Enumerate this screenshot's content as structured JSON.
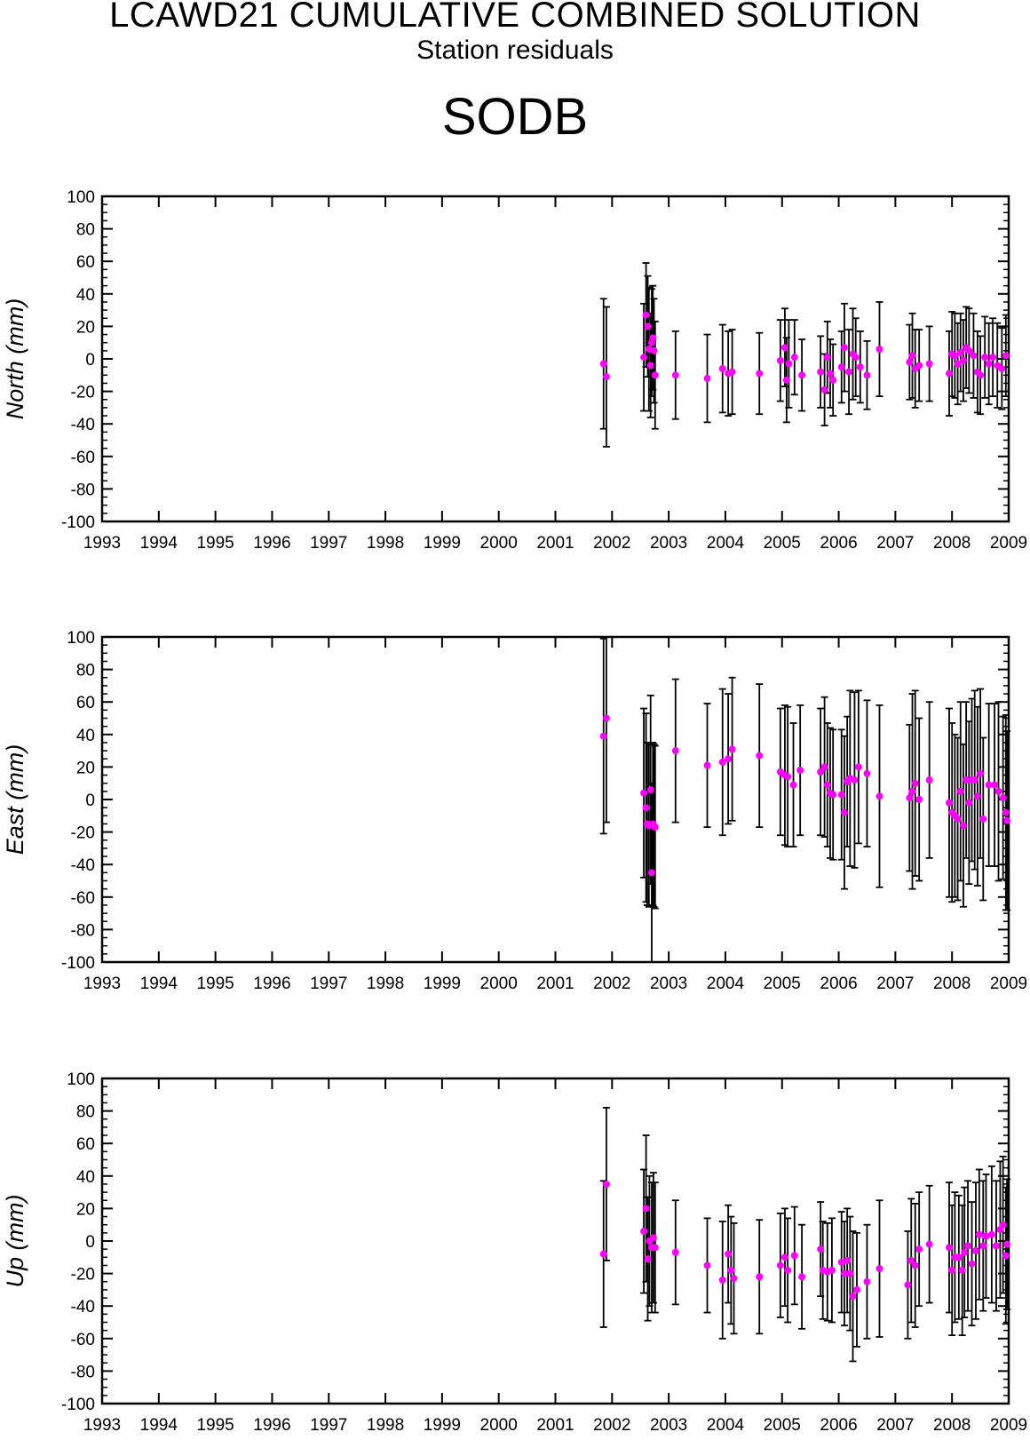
{
  "header": {
    "title": "LCAWD21 CUMULATIVE COMBINED SOLUTION",
    "subtitle": "Station residuals",
    "station": "SODB"
  },
  "colors": {
    "marker": "#ff00ff",
    "errorbar": "#000000",
    "axis": "#000000"
  },
  "chart_data": [
    {
      "type": "scatter",
      "ylabel": "North (mm)",
      "xlim": [
        1993,
        2009
      ],
      "ylim": [
        -100,
        100
      ],
      "xticks": [
        "1993",
        "1994",
        "1995",
        "1996",
        "1997",
        "1998",
        "1999",
        "2000",
        "2001",
        "2002",
        "2003",
        "2004",
        "2005",
        "2006",
        "2007",
        "2008",
        "2009"
      ],
      "yticks": [
        "100",
        "80",
        "60",
        "40",
        "20",
        "0",
        "-20",
        "-40",
        "-60",
        "-80",
        "-100"
      ],
      "points": [
        [
          2001.85,
          -3,
          40
        ],
        [
          2001.9,
          -11,
          43
        ],
        [
          2002.56,
          1,
          33
        ],
        [
          2002.6,
          27,
          32
        ],
        [
          2002.63,
          20,
          31
        ],
        [
          2002.65,
          6,
          38
        ],
        [
          2002.68,
          -4,
          32
        ],
        [
          2002.7,
          10,
          33
        ],
        [
          2002.72,
          13,
          32
        ],
        [
          2002.74,
          5,
          32
        ],
        [
          2002.76,
          -10,
          33
        ],
        [
          2003.12,
          -10,
          27
        ],
        [
          2003.68,
          -12,
          27
        ],
        [
          2003.95,
          -6,
          27
        ],
        [
          2004.05,
          -9,
          26
        ],
        [
          2004.12,
          -8,
          26
        ],
        [
          2004.6,
          -9,
          25
        ],
        [
          2004.97,
          -1,
          25
        ],
        [
          2005.05,
          7,
          24
        ],
        [
          2005.08,
          -13,
          26
        ],
        [
          2005.12,
          -3,
          27
        ],
        [
          2005.22,
          1,
          23
        ],
        [
          2005.35,
          -10,
          22
        ],
        [
          2005.68,
          -8,
          22
        ],
        [
          2005.75,
          -19,
          22
        ],
        [
          2005.8,
          1,
          22
        ],
        [
          2005.85,
          -9,
          21
        ],
        [
          2005.9,
          -13,
          22
        ],
        [
          2006.05,
          -5,
          22
        ],
        [
          2006.1,
          7,
          27
        ],
        [
          2006.18,
          -8,
          26
        ],
        [
          2006.25,
          3,
          28
        ],
        [
          2006.3,
          1,
          24
        ],
        [
          2006.38,
          -5,
          22
        ],
        [
          2006.5,
          -10,
          21
        ],
        [
          2006.72,
          6,
          29
        ],
        [
          2007.25,
          -2,
          23
        ],
        [
          2007.3,
          2,
          26
        ],
        [
          2007.35,
          -6,
          24
        ],
        [
          2007.42,
          -4,
          22
        ],
        [
          2007.6,
          -3,
          23
        ],
        [
          2007.95,
          -9,
          26
        ],
        [
          2008.0,
          3,
          26
        ],
        [
          2008.05,
          2,
          26
        ],
        [
          2008.1,
          -3,
          25
        ],
        [
          2008.15,
          4,
          24
        ],
        [
          2008.2,
          -1,
          25
        ],
        [
          2008.25,
          7,
          25
        ],
        [
          2008.3,
          5,
          26
        ],
        [
          2008.38,
          2,
          26
        ],
        [
          2008.45,
          -8,
          25
        ],
        [
          2008.5,
          -10,
          24
        ],
        [
          2008.58,
          1,
          25
        ],
        [
          2008.65,
          -3,
          25
        ],
        [
          2008.72,
          1,
          24
        ],
        [
          2008.8,
          -4,
          26
        ],
        [
          2008.88,
          -6,
          25
        ],
        [
          2008.95,
          2,
          25
        ]
      ]
    },
    {
      "type": "scatter",
      "ylabel": "East (mm)",
      "xlim": [
        1993,
        2009
      ],
      "ylim": [
        -100,
        100
      ],
      "xticks": [
        "1993",
        "1994",
        "1995",
        "1996",
        "1997",
        "1998",
        "1999",
        "2000",
        "2001",
        "2002",
        "2003",
        "2004",
        "2005",
        "2006",
        "2007",
        "2008",
        "2009"
      ],
      "yticks": [
        "100",
        "80",
        "60",
        "40",
        "20",
        "0",
        "-20",
        "-40",
        "-60",
        "-80",
        "-100"
      ],
      "points": [
        [
          2001.85,
          39,
          60
        ],
        [
          2001.9,
          50,
          64
        ],
        [
          2002.56,
          4,
          52
        ],
        [
          2002.6,
          -5,
          58
        ],
        [
          2002.62,
          -15,
          50
        ],
        [
          2002.65,
          -16,
          50
        ],
        [
          2002.68,
          6,
          58
        ],
        [
          2002.7,
          -45,
          55
        ],
        [
          2002.72,
          -15,
          50
        ],
        [
          2002.74,
          -16,
          50
        ],
        [
          2002.76,
          -17,
          50
        ],
        [
          2003.12,
          30,
          44
        ],
        [
          2003.68,
          21,
          38
        ],
        [
          2003.95,
          23,
          45
        ],
        [
          2004.05,
          25,
          40
        ],
        [
          2004.12,
          31,
          44
        ],
        [
          2004.6,
          27,
          44
        ],
        [
          2004.97,
          17,
          39
        ],
        [
          2005.05,
          15,
          43
        ],
        [
          2005.1,
          14,
          43
        ],
        [
          2005.2,
          9,
          38
        ],
        [
          2005.32,
          18,
          40
        ],
        [
          2005.68,
          17,
          39
        ],
        [
          2005.75,
          20,
          43
        ],
        [
          2005.8,
          9,
          38
        ],
        [
          2005.85,
          4,
          40
        ],
        [
          2005.9,
          3,
          40
        ],
        [
          2006.05,
          3,
          40
        ],
        [
          2006.1,
          -8,
          47
        ],
        [
          2006.15,
          11,
          40
        ],
        [
          2006.2,
          13,
          54
        ],
        [
          2006.28,
          12,
          54
        ],
        [
          2006.35,
          20,
          47
        ],
        [
          2006.5,
          16,
          45
        ],
        [
          2006.72,
          2,
          56
        ],
        [
          2007.25,
          1,
          45
        ],
        [
          2007.3,
          5,
          60
        ],
        [
          2007.35,
          10,
          57
        ],
        [
          2007.42,
          0,
          50
        ],
        [
          2007.6,
          12,
          48
        ],
        [
          2007.95,
          -2,
          58
        ],
        [
          2008.0,
          -8,
          55
        ],
        [
          2008.05,
          -10,
          50
        ],
        [
          2008.1,
          -12,
          50
        ],
        [
          2008.15,
          5,
          55
        ],
        [
          2008.2,
          -16,
          50
        ],
        [
          2008.25,
          12,
          48
        ],
        [
          2008.3,
          -2,
          50
        ],
        [
          2008.35,
          12,
          50
        ],
        [
          2008.4,
          12,
          55
        ],
        [
          2008.45,
          2,
          55
        ],
        [
          2008.5,
          16,
          52
        ],
        [
          2008.55,
          -12,
          50
        ],
        [
          2008.65,
          9,
          50
        ],
        [
          2008.75,
          9,
          50
        ],
        [
          2008.82,
          5,
          55
        ],
        [
          2008.9,
          1,
          50
        ],
        [
          2008.95,
          -8,
          60
        ],
        [
          2008.97,
          -13,
          55
        ]
      ]
    },
    {
      "type": "scatter",
      "ylabel": "Up (mm)",
      "xlim": [
        1993,
        2009
      ],
      "ylim": [
        -100,
        100
      ],
      "xticks": [
        "1993",
        "1994",
        "1995",
        "1996",
        "1997",
        "1998",
        "1999",
        "2000",
        "2001",
        "2002",
        "2003",
        "2004",
        "2005",
        "2006",
        "2007",
        "2008",
        "2009"
      ],
      "yticks": [
        "100",
        "80",
        "60",
        "40",
        "20",
        "0",
        "-20",
        "-40",
        "-60",
        "-80",
        "-100"
      ],
      "points": [
        [
          2001.85,
          -8,
          45
        ],
        [
          2001.9,
          35,
          47
        ],
        [
          2002.56,
          6,
          38
        ],
        [
          2002.6,
          20,
          45
        ],
        [
          2002.63,
          -11,
          38
        ],
        [
          2002.66,
          0,
          40
        ],
        [
          2002.7,
          -4,
          40
        ],
        [
          2002.73,
          2,
          40
        ],
        [
          2002.76,
          -4,
          40
        ],
        [
          2003.12,
          -7,
          32
        ],
        [
          2003.68,
          -15,
          29
        ],
        [
          2003.95,
          -24,
          36
        ],
        [
          2004.05,
          -8,
          30
        ],
        [
          2004.1,
          -18,
          33
        ],
        [
          2004.15,
          -23,
          34
        ],
        [
          2004.6,
          -22,
          35
        ],
        [
          2004.97,
          -15,
          32
        ],
        [
          2005.05,
          -10,
          30
        ],
        [
          2005.1,
          -18,
          32
        ],
        [
          2005.22,
          -9,
          30
        ],
        [
          2005.35,
          -22,
          32
        ],
        [
          2005.68,
          -5,
          29
        ],
        [
          2005.72,
          -18,
          30
        ],
        [
          2005.8,
          -19,
          30
        ],
        [
          2005.88,
          -18,
          32
        ],
        [
          2006.05,
          -13,
          31
        ],
        [
          2006.1,
          -20,
          32
        ],
        [
          2006.15,
          -12,
          32
        ],
        [
          2006.2,
          -20,
          35
        ],
        [
          2006.25,
          -34,
          40
        ],
        [
          2006.32,
          -30,
          35
        ],
        [
          2006.5,
          -25,
          35
        ],
        [
          2006.72,
          -17,
          42
        ],
        [
          2007.22,
          -27,
          33
        ],
        [
          2007.28,
          -12,
          38
        ],
        [
          2007.35,
          -15,
          38
        ],
        [
          2007.42,
          -5,
          35
        ],
        [
          2007.6,
          -2,
          36
        ],
        [
          2007.95,
          -4,
          40
        ],
        [
          2008.0,
          -18,
          40
        ],
        [
          2008.05,
          -10,
          40
        ],
        [
          2008.12,
          -10,
          38
        ],
        [
          2008.18,
          -18,
          40
        ],
        [
          2008.22,
          -7,
          40
        ],
        [
          2008.28,
          -3,
          40
        ],
        [
          2008.35,
          -14,
          38
        ],
        [
          2008.42,
          -6,
          42
        ],
        [
          2008.48,
          4,
          40
        ],
        [
          2008.55,
          -3,
          40
        ],
        [
          2008.6,
          3,
          38
        ],
        [
          2008.7,
          4,
          42
        ],
        [
          2008.78,
          -3,
          40
        ],
        [
          2008.85,
          7,
          42
        ],
        [
          2008.9,
          10,
          42
        ],
        [
          2008.95,
          -9,
          42
        ],
        [
          2008.97,
          -2,
          40
        ]
      ]
    }
  ]
}
